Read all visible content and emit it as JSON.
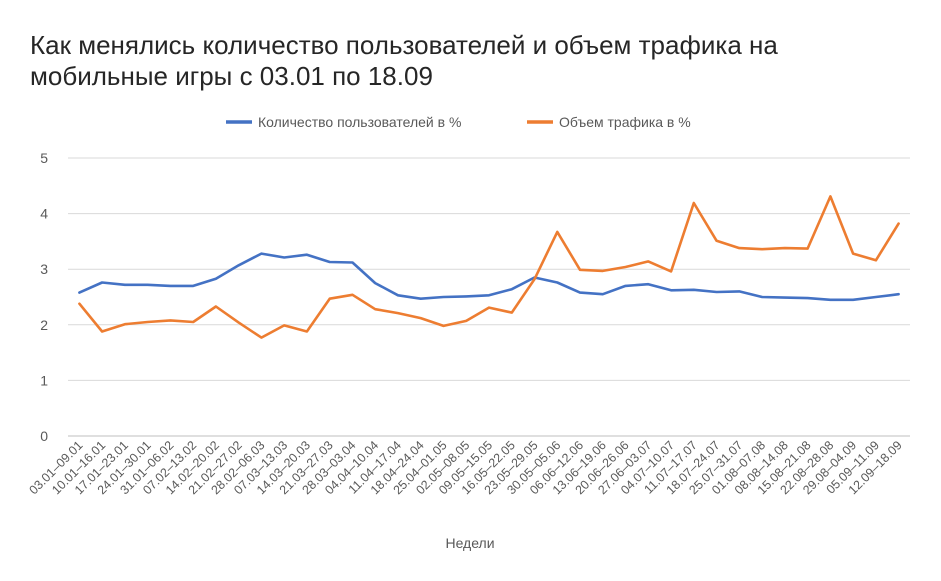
{
  "chart_data": {
    "type": "line",
    "title": "Как менялись количество пользователей и объем трафика на мобильные игры с 03.01 по 18.09",
    "xlabel": "Недели",
    "ylabel": "",
    "ylim": [
      0,
      5
    ],
    "yticks": [
      0,
      1,
      2,
      3,
      4,
      5
    ],
    "grid": true,
    "legend_position": "top",
    "categories": [
      "03.01–09.01",
      "10.01–16.01",
      "17.01–23.01",
      "24.01–30.01",
      "31.01–06.02",
      "07.02–13.02",
      "14.02–20.02",
      "21.02–27.02",
      "28.02–06.03",
      "07.03–13.03",
      "14.03–20.03",
      "21.03–27.03",
      "28.03–03.04",
      "04.04–10.04",
      "11.04–17.04",
      "18.04–24.04",
      "25.04–01.05",
      "02.05–08.05",
      "09.05–15.05",
      "16.05–22.05",
      "23.05–29.05",
      "30.05–05.06",
      "06.06–12.06",
      "13.06–19.06",
      "20.06–26.06",
      "27.06–03.07",
      "04.07–10.07",
      "11.07–17.07",
      "18.07–24.07",
      "25.07–31.07",
      "01.08–07.08",
      "08.08–14.08",
      "15.08–21.08",
      "22.08–28.08",
      "29.08–04.09",
      "05.09–11.09",
      "12.09–18.09"
    ],
    "series": [
      {
        "name": "Количество пользователей в %",
        "color": "#4472C4",
        "values": [
          2.58,
          2.76,
          2.72,
          2.72,
          2.7,
          2.7,
          2.83,
          3.07,
          3.28,
          3.21,
          3.26,
          3.13,
          3.12,
          2.75,
          2.53,
          2.47,
          2.5,
          2.51,
          2.53,
          2.64,
          2.85,
          2.76,
          2.58,
          2.55,
          2.7,
          2.73,
          2.62,
          2.63,
          2.59,
          2.6,
          2.5,
          2.49,
          2.48,
          2.45,
          2.45,
          2.5,
          2.55
        ]
      },
      {
        "name": "Объем трафика в %",
        "color": "#ED7D31",
        "values": [
          2.38,
          1.88,
          2.01,
          2.05,
          2.08,
          2.05,
          2.33,
          2.04,
          1.77,
          1.99,
          1.88,
          2.47,
          2.54,
          2.28,
          2.21,
          2.12,
          1.98,
          2.07,
          2.31,
          2.22,
          2.82,
          3.67,
          2.99,
          2.97,
          3.04,
          3.14,
          2.96,
          4.19,
          3.51,
          3.38,
          3.36,
          3.38,
          3.37,
          4.31,
          3.28,
          3.16,
          3.82
        ]
      }
    ]
  }
}
